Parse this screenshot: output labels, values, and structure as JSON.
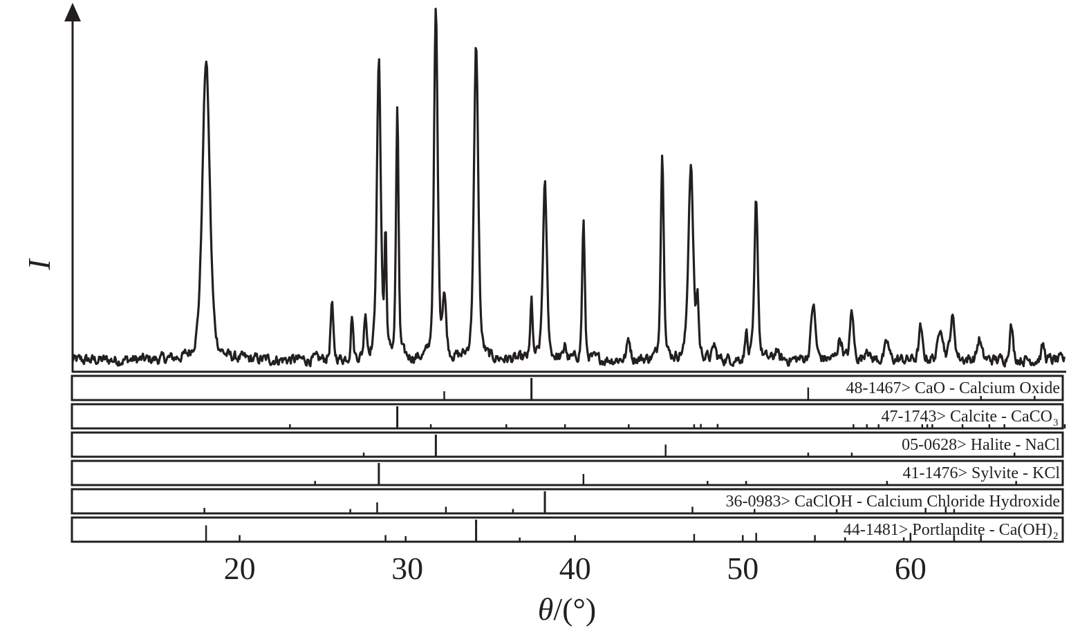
{
  "chart_data": {
    "type": "line",
    "title": "",
    "xlabel_var": "θ",
    "xlabel_unit": "/(°)",
    "ylabel": "I",
    "xlim": [
      10,
      69.2
    ],
    "ylim": [
      0,
      100
    ],
    "x_ticks": [
      20,
      30,
      40,
      50,
      60
    ],
    "x_tick_labels": [
      "20",
      "30",
      "40",
      "50",
      "60"
    ],
    "colors": {
      "line": "#231f20",
      "axis": "#231f20"
    },
    "baseline": 2.5,
    "peaks": [
      {
        "x": 18.0,
        "y": 86,
        "w": 0.26
      },
      {
        "x": 25.5,
        "y": 16,
        "w": 0.09
      },
      {
        "x": 26.7,
        "y": 13,
        "w": 0.08
      },
      {
        "x": 27.5,
        "y": 13,
        "w": 0.09
      },
      {
        "x": 28.3,
        "y": 85,
        "w": 0.14
      },
      {
        "x": 28.7,
        "y": 34,
        "w": 0.07
      },
      {
        "x": 29.4,
        "y": 71,
        "w": 0.09
      },
      {
        "x": 31.7,
        "y": 100,
        "w": 0.13
      },
      {
        "x": 32.2,
        "y": 17,
        "w": 0.13
      },
      {
        "x": 34.1,
        "y": 90,
        "w": 0.15
      },
      {
        "x": 37.4,
        "y": 18,
        "w": 0.07
      },
      {
        "x": 38.2,
        "y": 50,
        "w": 0.14
      },
      {
        "x": 39.4,
        "y": 5,
        "w": 0.07
      },
      {
        "x": 40.5,
        "y": 40,
        "w": 0.09
      },
      {
        "x": 43.2,
        "y": 6,
        "w": 0.12
      },
      {
        "x": 45.2,
        "y": 59,
        "w": 0.11
      },
      {
        "x": 46.9,
        "y": 56,
        "w": 0.17
      },
      {
        "x": 47.3,
        "y": 16,
        "w": 0.08
      },
      {
        "x": 48.3,
        "y": 4,
        "w": 0.1
      },
      {
        "x": 50.2,
        "y": 9,
        "w": 0.07
      },
      {
        "x": 50.8,
        "y": 46,
        "w": 0.12
      },
      {
        "x": 52.0,
        "y": 3,
        "w": 0.1
      },
      {
        "x": 54.2,
        "y": 16,
        "w": 0.15
      },
      {
        "x": 55.8,
        "y": 6,
        "w": 0.16
      },
      {
        "x": 56.5,
        "y": 14,
        "w": 0.12
      },
      {
        "x": 57.4,
        "y": 4,
        "w": 0.12
      },
      {
        "x": 58.6,
        "y": 5,
        "w": 0.14
      },
      {
        "x": 60.6,
        "y": 9,
        "w": 0.12
      },
      {
        "x": 61.8,
        "y": 10,
        "w": 0.16
      },
      {
        "x": 62.5,
        "y": 12,
        "w": 0.16
      },
      {
        "x": 64.1,
        "y": 6,
        "w": 0.14
      },
      {
        "x": 66.0,
        "y": 10,
        "w": 0.12
      },
      {
        "x": 67.9,
        "y": 4,
        "w": 0.12
      }
    ],
    "reference_patterns": [
      {
        "name": "48-1467> CaO - Calcium Oxide",
        "sub": "",
        "lines": [
          {
            "x": 32.2,
            "h": 40
          },
          {
            "x": 37.4,
            "h": 100
          },
          {
            "x": 53.9,
            "h": 57
          },
          {
            "x": 64.2,
            "h": 15
          },
          {
            "x": 67.4,
            "h": 12
          }
        ]
      },
      {
        "name": "47-1743> Calcite - CaCO",
        "sub": "3",
        "lines": [
          {
            "x": 23.0,
            "h": 10
          },
          {
            "x": 29.4,
            "h": 100
          },
          {
            "x": 31.4,
            "h": 5
          },
          {
            "x": 35.9,
            "h": 12
          },
          {
            "x": 39.4,
            "h": 18
          },
          {
            "x": 43.2,
            "h": 15
          },
          {
            "x": 47.1,
            "h": 15
          },
          {
            "x": 47.5,
            "h": 20
          },
          {
            "x": 48.5,
            "h": 20
          },
          {
            "x": 56.6,
            "h": 5
          },
          {
            "x": 57.4,
            "h": 8
          },
          {
            "x": 58.1,
            "h": 5
          },
          {
            "x": 60.7,
            "h": 5
          },
          {
            "x": 61.0,
            "h": 5
          },
          {
            "x": 61.3,
            "h": 5
          },
          {
            "x": 63.1,
            "h": 5
          },
          {
            "x": 64.7,
            "h": 5
          },
          {
            "x": 65.6,
            "h": 5
          },
          {
            "x": 69.2,
            "h": 5
          }
        ]
      },
      {
        "name": "05-0628> Halite - NaCl",
        "sub": "",
        "lines": [
          {
            "x": 27.4,
            "h": 13
          },
          {
            "x": 31.7,
            "h": 100
          },
          {
            "x": 45.4,
            "h": 55
          },
          {
            "x": 53.9,
            "h": 5
          },
          {
            "x": 56.5,
            "h": 15
          },
          {
            "x": 66.2,
            "h": 10
          }
        ]
      },
      {
        "name": "41-1476> Sylvite - KCl",
        "sub": "",
        "lines": [
          {
            "x": 24.5,
            "h": 5
          },
          {
            "x": 28.3,
            "h": 100
          },
          {
            "x": 40.5,
            "h": 50
          },
          {
            "x": 47.9,
            "h": 5
          },
          {
            "x": 50.2,
            "h": 15
          },
          {
            "x": 58.6,
            "h": 8
          },
          {
            "x": 66.3,
            "h": 10
          }
        ]
      },
      {
        "name": "36-0983> CaClOH - Calcium Chloride Hydroxide",
        "sub": "",
        "lines": [
          {
            "x": 17.9,
            "h": 25
          },
          {
            "x": 26.6,
            "h": 20
          },
          {
            "x": 28.2,
            "h": 50
          },
          {
            "x": 32.3,
            "h": 30
          },
          {
            "x": 36.3,
            "h": 20
          },
          {
            "x": 38.2,
            "h": 100
          },
          {
            "x": 47.0,
            "h": 30
          },
          {
            "x": 50.7,
            "h": 20
          },
          {
            "x": 55.6,
            "h": 15
          },
          {
            "x": 60.9,
            "h": 25
          },
          {
            "x": 62.1,
            "h": 30
          },
          {
            "x": 62.6,
            "h": 20
          }
        ]
      },
      {
        "name": "44-1481> Portlandite - Ca(OH)",
        "sub": "2",
        "lines": [
          {
            "x": 18.0,
            "h": 74
          },
          {
            "x": 20.0,
            "h": 30
          },
          {
            "x": 28.7,
            "h": 30
          },
          {
            "x": 29.9,
            "h": 25
          },
          {
            "x": 34.1,
            "h": 100
          },
          {
            "x": 36.7,
            "h": 10
          },
          {
            "x": 40.0,
            "h": 30
          },
          {
            "x": 47.1,
            "h": 35
          },
          {
            "x": 50.0,
            "h": 30
          },
          {
            "x": 50.8,
            "h": 40
          },
          {
            "x": 54.3,
            "h": 30
          },
          {
            "x": 56.1,
            "h": 20
          },
          {
            "x": 59.6,
            "h": 20
          },
          {
            "x": 60.0,
            "h": 40
          },
          {
            "x": 62.6,
            "h": 30
          },
          {
            "x": 64.2,
            "h": 30
          }
        ]
      }
    ]
  }
}
